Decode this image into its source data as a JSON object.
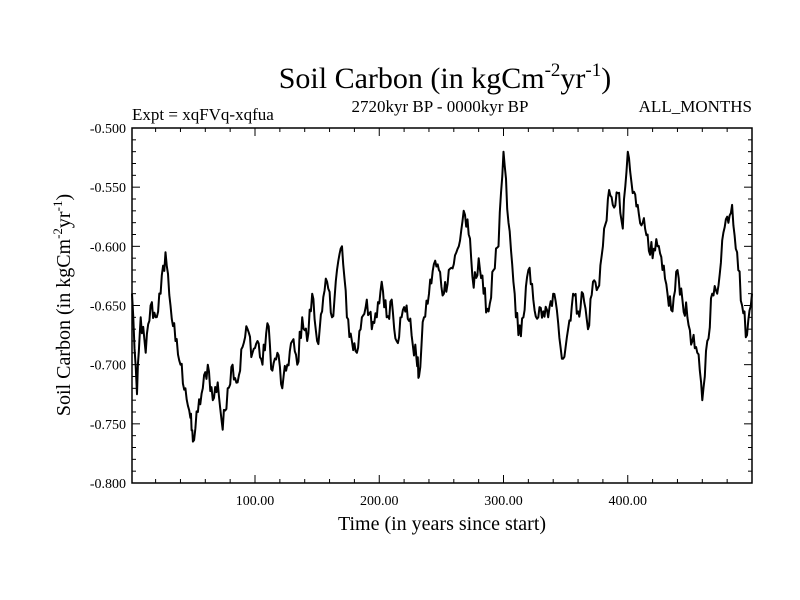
{
  "chart_data": {
    "type": "line",
    "title": {
      "main": "Soil Carbon (in kgCm",
      "sup1": "-2",
      "mid": "yr",
      "sup2": "-1",
      "end": ")"
    },
    "subtitle_left": "Expt = xqFVq-xqfua",
    "subtitle_center": "2720kyr BP - 0000kyr BP",
    "subtitle_right": "ALL_MONTHS",
    "xlabel": "Time (in years since start)",
    "ylabel": {
      "main": "Soil Carbon (in kgCm",
      "sup1": "-2",
      "mid": "yr",
      "sup2": "-1",
      "end": ")"
    },
    "xlim": [
      1,
      500
    ],
    "ylim": [
      -0.8,
      -0.5
    ],
    "x_ticks": [
      100,
      200,
      300,
      400
    ],
    "x_tick_labels": [
      "100.00",
      "200.00",
      "300.00",
      "400.00"
    ],
    "y_ticks": [
      -0.5,
      -0.55,
      -0.6,
      -0.65,
      -0.7,
      -0.75,
      -0.8
    ],
    "y_tick_labels": [
      "-0.500",
      "-0.550",
      "-0.600",
      "-0.650",
      "-0.700",
      "-0.750",
      "-0.800"
    ],
    "grid": false,
    "series": [
      {
        "name": "Soil Carbon",
        "color": "#000000",
        "x": [
          1,
          5,
          8,
          12,
          16,
          20,
          24,
          28,
          32,
          36,
          40,
          44,
          48,
          50,
          54,
          58,
          62,
          66,
          70,
          74,
          78,
          82,
          86,
          90,
          94,
          98,
          102,
          106,
          110,
          114,
          118,
          122,
          126,
          130,
          134,
          138,
          142,
          146,
          150,
          154,
          158,
          162,
          166,
          170,
          174,
          178,
          182,
          186,
          190,
          194,
          198,
          202,
          206,
          210,
          214,
          218,
          222,
          226,
          230,
          232,
          236,
          240,
          244,
          248,
          252,
          256,
          260,
          264,
          268,
          272,
          276,
          280,
          284,
          288,
          292,
          296,
          300,
          304,
          308,
          312,
          316,
          320,
          324,
          328,
          332,
          336,
          340,
          344,
          348,
          352,
          356,
          360,
          364,
          368,
          372,
          376,
          380,
          384,
          388,
          392,
          396,
          400,
          404,
          408,
          412,
          416,
          420,
          424,
          428,
          432,
          436,
          440,
          444,
          448,
          452,
          456,
          460,
          464,
          468,
          472,
          476,
          480,
          484,
          488,
          492,
          496,
          500
        ],
        "values": [
          -0.64,
          -0.725,
          -0.66,
          -0.69,
          -0.65,
          -0.66,
          -0.64,
          -0.605,
          -0.65,
          -0.68,
          -0.7,
          -0.72,
          -0.745,
          -0.765,
          -0.74,
          -0.72,
          -0.7,
          -0.73,
          -0.715,
          -0.755,
          -0.72,
          -0.7,
          -0.715,
          -0.685,
          -0.67,
          -0.69,
          -0.68,
          -0.7,
          -0.665,
          -0.705,
          -0.69,
          -0.72,
          -0.7,
          -0.68,
          -0.7,
          -0.66,
          -0.68,
          -0.64,
          -0.68,
          -0.655,
          -0.63,
          -0.66,
          -0.62,
          -0.6,
          -0.66,
          -0.68,
          -0.69,
          -0.66,
          -0.645,
          -0.67,
          -0.66,
          -0.63,
          -0.66,
          -0.645,
          -0.68,
          -0.66,
          -0.65,
          -0.675,
          -0.695,
          -0.71,
          -0.66,
          -0.64,
          -0.615,
          -0.62,
          -0.64,
          -0.62,
          -0.615,
          -0.6,
          -0.57,
          -0.59,
          -0.635,
          -0.61,
          -0.64,
          -0.655,
          -0.62,
          -0.6,
          -0.52,
          -0.58,
          -0.63,
          -0.675,
          -0.66,
          -0.62,
          -0.645,
          -0.66,
          -0.655,
          -0.66,
          -0.64,
          -0.665,
          -0.695,
          -0.67,
          -0.64,
          -0.655,
          -0.64,
          -0.67,
          -0.63,
          -0.635,
          -0.6,
          -0.56,
          -0.565,
          -0.555,
          -0.585,
          -0.52,
          -0.555,
          -0.565,
          -0.58,
          -0.59,
          -0.61,
          -0.6,
          -0.62,
          -0.64,
          -0.655,
          -0.62,
          -0.645,
          -0.66,
          -0.68,
          -0.69,
          -0.73,
          -0.68,
          -0.64,
          -0.64,
          -0.595,
          -0.575,
          -0.565,
          -0.605,
          -0.65,
          -0.675,
          -0.64
        ]
      }
    ]
  }
}
